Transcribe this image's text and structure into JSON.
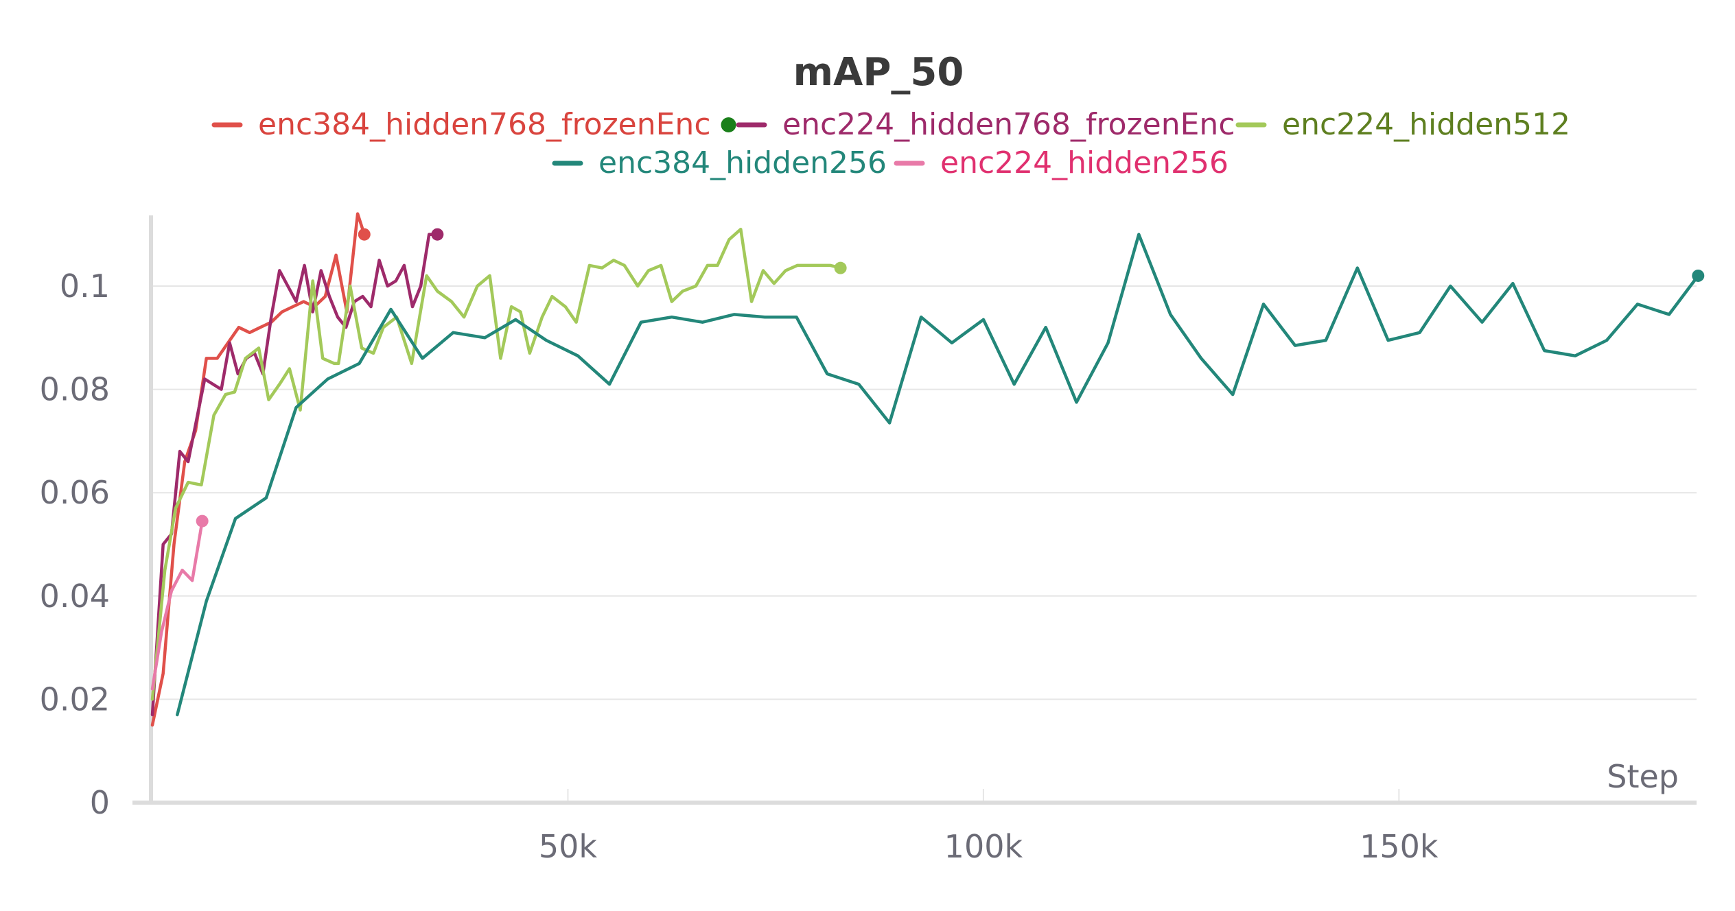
{
  "chart_data": {
    "type": "line",
    "title": "mAP_50",
    "xlabel": "Step",
    "ylabel": "",
    "xlim": [
      0,
      186000
    ],
    "ylim": [
      0,
      0.112
    ],
    "xticks": [
      50000,
      100000,
      150000
    ],
    "xtick_labels": [
      "50k",
      "100k",
      "150k"
    ],
    "yticks": [
      0,
      0.02,
      0.04,
      0.06,
      0.08,
      0.1
    ],
    "ytick_labels": [
      "0",
      "0.02",
      "0.04",
      "0.06",
      "0.08",
      "0.1"
    ],
    "grid": true,
    "legend_position": "top-center",
    "series": [
      {
        "name": "enc384_hidden768_frozenEnc",
        "color": "#e0504a",
        "text_color": "#d9443e",
        "marker_color": "#1a7f1a",
        "x": [
          0,
          1300,
          2600,
          3900,
          5200,
          6500,
          7800,
          9100,
          10400,
          11700,
          13000,
          14300,
          15600,
          16900,
          18200,
          19500,
          20800,
          22100,
          23400,
          24700,
          25500
        ],
        "y": [
          0.015,
          0.025,
          0.05,
          0.066,
          0.072,
          0.086,
          0.086,
          0.089,
          0.092,
          0.091,
          0.092,
          0.093,
          0.095,
          0.096,
          0.097,
          0.096,
          0.098,
          0.106,
          0.095,
          0.114,
          0.11
        ]
      },
      {
        "name": "enc224_hidden768_frozenEnc",
        "color": "#9e2a6a",
        "text_color": "#9e2a6a",
        "x": [
          0,
          1300,
          2300,
          3300,
          4300,
          5300,
          6300,
          7300,
          8300,
          9300,
          10300,
          11300,
          12300,
          13300,
          14300,
          15300,
          16300,
          17300,
          18300,
          19300,
          20300,
          21300,
          22300,
          23300,
          24300,
          25300,
          26300,
          27300,
          28300,
          29300,
          30300,
          31300,
          32300,
          33300,
          34300
        ],
        "y": [
          0.017,
          0.05,
          0.052,
          0.068,
          0.066,
          0.074,
          0.082,
          0.081,
          0.08,
          0.089,
          0.083,
          0.086,
          0.087,
          0.083,
          0.094,
          0.103,
          0.1,
          0.097,
          0.104,
          0.095,
          0.103,
          0.098,
          0.094,
          0.092,
          0.097,
          0.098,
          0.096,
          0.105,
          0.1,
          0.101,
          0.104,
          0.096,
          0.1,
          0.11,
          0.11
        ]
      },
      {
        "name": "enc224_hidden512",
        "color": "#a3c95a",
        "text_color": "#5e7f20",
        "x": [
          0,
          1500,
          2800,
          4300,
          5900,
          7400,
          8800,
          9900,
          11200,
          12800,
          14000,
          15300,
          16500,
          17800,
          19300,
          20500,
          21900,
          22400,
          23800,
          25200,
          26600,
          27800,
          29400,
          31200,
          33000,
          34300,
          36000,
          37500,
          39100,
          40600,
          41900,
          43200,
          44300,
          45400,
          46900,
          48100,
          49700,
          51000,
          52600,
          54100,
          55500,
          56800,
          58400,
          59700,
          61200,
          62500,
          63800,
          65400,
          66800,
          68000,
          69400,
          70800,
          72100,
          73500,
          74800,
          76200,
          77600,
          78900,
          80300,
          81600,
          82800
        ],
        "y": [
          0.02,
          0.045,
          0.057,
          0.062,
          0.0615,
          0.075,
          0.079,
          0.0795,
          0.086,
          0.088,
          0.078,
          0.081,
          0.084,
          0.076,
          0.101,
          0.086,
          0.085,
          0.085,
          0.1,
          0.088,
          0.087,
          0.092,
          0.094,
          0.085,
          0.102,
          0.099,
          0.097,
          0.094,
          0.1,
          0.102,
          0.086,
          0.096,
          0.095,
          0.087,
          0.094,
          0.098,
          0.096,
          0.093,
          0.104,
          0.1035,
          0.105,
          0.104,
          0.1,
          0.103,
          0.104,
          0.097,
          0.099,
          0.1,
          0.104,
          0.104,
          0.109,
          0.111,
          0.097,
          0.103,
          0.1005,
          0.103,
          0.104,
          0.104,
          0.104,
          0.104,
          0.1035
        ]
      },
      {
        "name": "enc384_hidden256",
        "color": "#23877a",
        "text_color": "#23877a",
        "x": [
          3000,
          6500,
          10000,
          13700,
          17300,
          21100,
          24900,
          28700,
          32500,
          36200,
          40000,
          43700,
          47400,
          51200,
          55000,
          58800,
          62500,
          66200,
          70000,
          73700,
          77500,
          81200,
          85000,
          88700,
          92500,
          96200,
          100000,
          103700,
          107500,
          111200,
          115000,
          118700,
          122500,
          126200,
          130000,
          133700,
          137500,
          141200,
          145000,
          148700,
          152500,
          156200,
          160000,
          163700,
          167500,
          171200,
          175000,
          178700,
          182500,
          186000
        ],
        "y": [
          0.017,
          0.039,
          0.055,
          0.059,
          0.0765,
          0.082,
          0.085,
          0.0955,
          0.086,
          0.091,
          0.09,
          0.0935,
          0.0895,
          0.0865,
          0.081,
          0.093,
          0.094,
          0.093,
          0.0945,
          0.094,
          0.094,
          0.083,
          0.081,
          0.0735,
          0.094,
          0.089,
          0.0935,
          0.081,
          0.092,
          0.0775,
          0.089,
          0.11,
          0.0945,
          0.086,
          0.079,
          0.0965,
          0.0885,
          0.0895,
          0.1035,
          0.0895,
          0.091,
          0.1,
          0.093,
          0.1005,
          0.0875,
          0.0865,
          0.0895,
          0.0965,
          0.0945,
          0.102
        ]
      },
      {
        "name": "enc224_hidden256",
        "color": "#e87aa8",
        "text_color": "#e0306f",
        "x": [
          0,
          1100,
          2300,
          3600,
          4800,
          6000
        ],
        "y": [
          0.022,
          0.033,
          0.041,
          0.045,
          0.043,
          0.0545
        ]
      }
    ]
  }
}
